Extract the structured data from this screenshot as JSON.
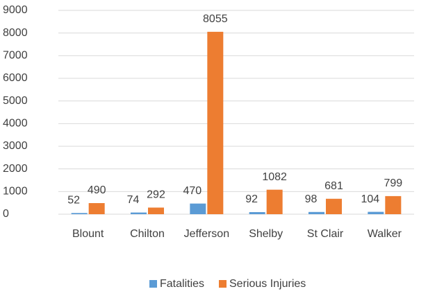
{
  "chart_data": {
    "type": "bar",
    "categories": [
      "Blount",
      "Chilton",
      "Jefferson",
      "Shelby",
      "St Clair",
      "Walker"
    ],
    "series": [
      {
        "name": "Fatalities",
        "color": "#5b9bd5",
        "values": [
          52,
          74,
          470,
          92,
          98,
          104
        ]
      },
      {
        "name": "Serious Injuries",
        "color": "#ed7d31",
        "values": [
          490,
          292,
          8055,
          1082,
          681,
          799
        ]
      }
    ],
    "ylim": [
      0,
      9000
    ],
    "yticks": [
      0,
      1000,
      2000,
      3000,
      4000,
      5000,
      6000,
      7000,
      8000,
      9000
    ],
    "grid": true,
    "legend": "bottom"
  }
}
